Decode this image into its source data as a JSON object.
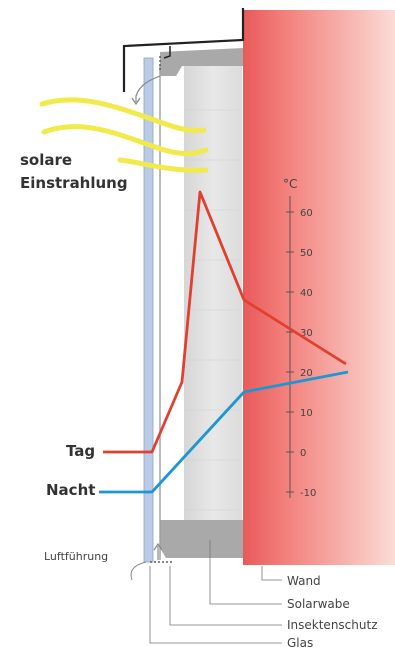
{
  "labels": {
    "solar_line1": "solare",
    "solar_line2": "Einstrahlung",
    "unit": "°C",
    "day": "Tag",
    "night": "Nacht",
    "airflow": "Luftführung",
    "wall": "Wand",
    "solar_honeycomb": "Solarwabe",
    "insect_screen": "Insektenschutz",
    "glass": "Glas"
  },
  "scale": {
    "unit": "°C",
    "ticks": [
      "60",
      "50",
      "40",
      "30",
      "20",
      "10",
      "0",
      "-10"
    ]
  },
  "curves": {
    "day": {
      "color": "#e04030",
      "start_temp": 0,
      "peak_temp": 65,
      "wall_temp": 38,
      "end_temp": 22
    },
    "night": {
      "color": "#1e96d2",
      "start_temp": -10,
      "wall_temp": 15,
      "end_temp": 20
    }
  },
  "colors": {
    "wall_red": "#f06a6a",
    "honeycomb_gray": "#e2e2e2",
    "glass_blue": "#b6c8e4",
    "sun_yellow": "#f0ea4a"
  }
}
